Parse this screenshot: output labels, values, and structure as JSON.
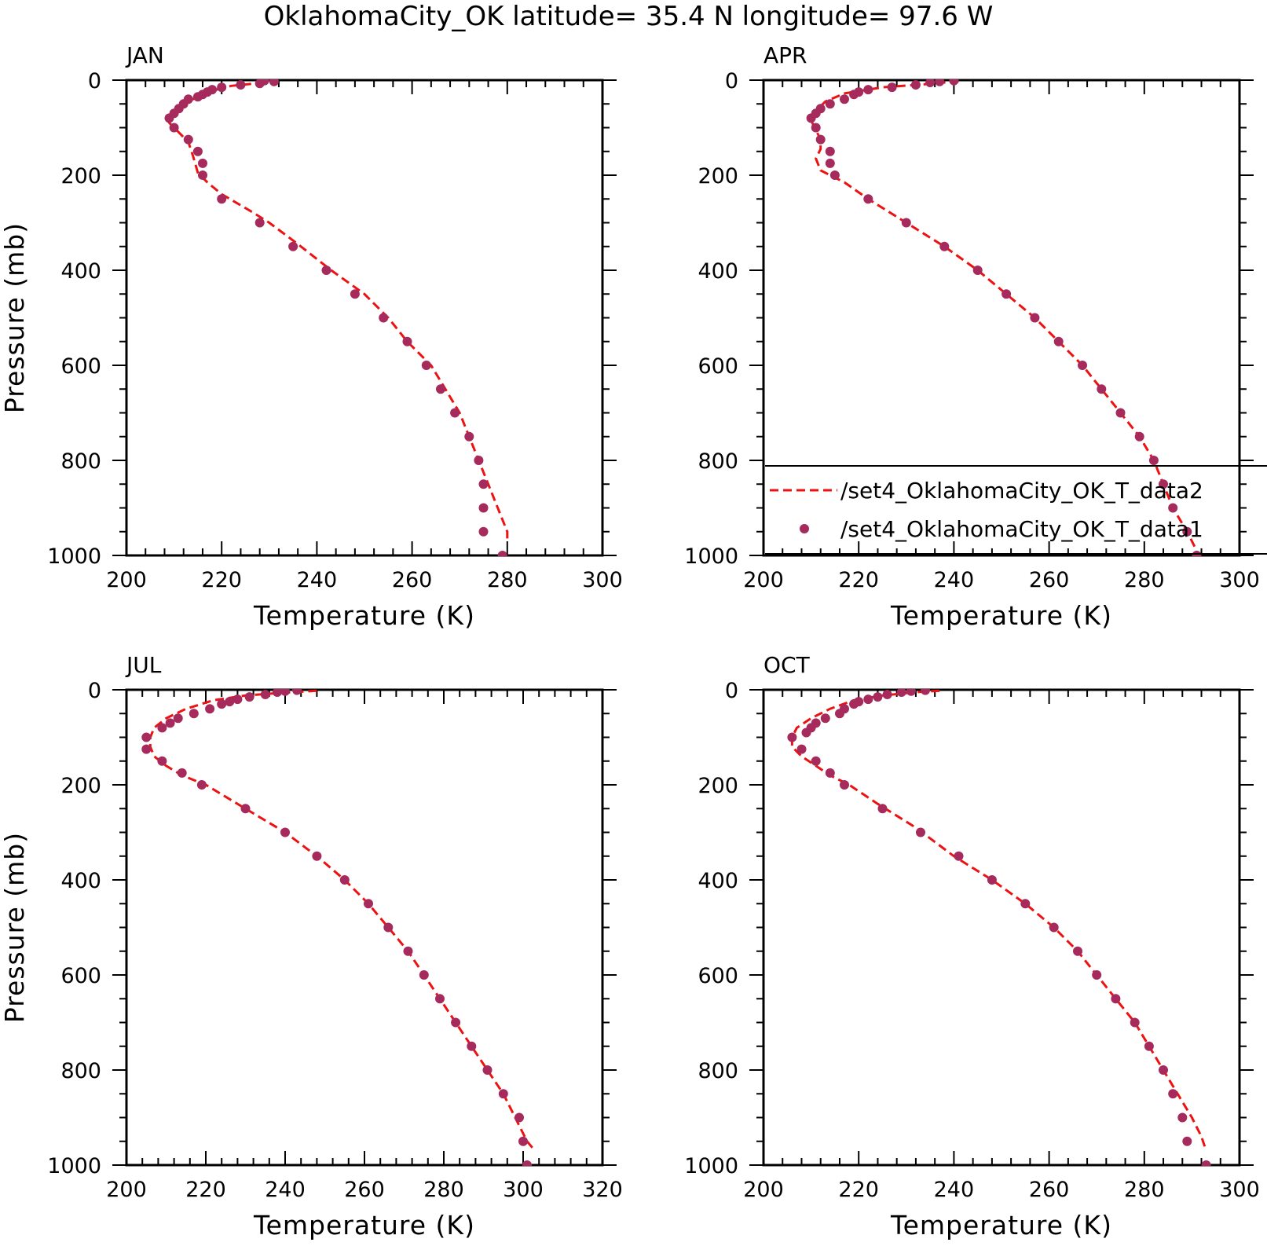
{
  "title": "OklahomaCity_OK   latitude= 35.4 N longitude= 97.6 W",
  "colors": {
    "model_line": "#ee1111",
    "obs_marker": "#a62a5c",
    "axis": "#000000"
  },
  "legend": {
    "panel": 1,
    "entries": [
      {
        "label": "/set4_OklahomaCity_OK_T_data2",
        "style": "dashed-line"
      },
      {
        "label": "/set4_OklahomaCity_OK_T_data1",
        "style": "marker"
      }
    ]
  },
  "chart_data": [
    {
      "type": "line",
      "panel_label": "JAN",
      "xlabel": "Temperature (K)",
      "ylabel": "Pressure (mb)",
      "xlim": [
        200,
        300
      ],
      "ylim": [
        1000,
        0
      ],
      "xticks": [
        200,
        220,
        240,
        260,
        280,
        300
      ],
      "yticks": [
        0,
        200,
        400,
        600,
        800,
        1000
      ],
      "series": [
        {
          "style": "dashed-line",
          "points": [
            [
              229,
              5
            ],
            [
              222,
              12
            ],
            [
              217,
              25
            ],
            [
              213,
              45
            ],
            [
              210,
              65
            ],
            [
              209,
              90
            ],
            [
              211,
              110
            ],
            [
              213,
              130
            ],
            [
              214,
              160
            ],
            [
              215,
              195
            ],
            [
              217,
              215
            ],
            [
              220,
              240
            ],
            [
              226,
              275
            ],
            [
              230,
              300
            ],
            [
              236,
              345
            ],
            [
              243,
              400
            ],
            [
              250,
              450
            ],
            [
              255,
              500
            ],
            [
              259,
              550
            ],
            [
              264,
              600
            ],
            [
              267,
              650
            ],
            [
              270,
              700
            ],
            [
              272,
              750
            ],
            [
              274,
              800
            ],
            [
              276,
              850
            ],
            [
              278,
              900
            ],
            [
              280,
              950
            ],
            [
              280,
              970
            ]
          ]
        },
        {
          "style": "marker",
          "points": [
            [
              229,
              1
            ],
            [
              231,
              3
            ],
            [
              228,
              7
            ],
            [
              224,
              10
            ],
            [
              220,
              15
            ],
            [
              218,
              20
            ],
            [
              217,
              25
            ],
            [
              216,
              30
            ],
            [
              215,
              35
            ],
            [
              213,
              40
            ],
            [
              212,
              50
            ],
            [
              211,
              60
            ],
            [
              210,
              70
            ],
            [
              209,
              80
            ],
            [
              210,
              100
            ],
            [
              213,
              125
            ],
            [
              215,
              150
            ],
            [
              216,
              175
            ],
            [
              216,
              200
            ],
            [
              220,
              250
            ],
            [
              228,
              300
            ],
            [
              235,
              350
            ],
            [
              242,
              400
            ],
            [
              248,
              450
            ],
            [
              254,
              500
            ],
            [
              259,
              550
            ],
            [
              263,
              600
            ],
            [
              266,
              650
            ],
            [
              269,
              700
            ],
            [
              272,
              750
            ],
            [
              274,
              800
            ],
            [
              275,
              850
            ],
            [
              275,
              900
            ],
            [
              275,
              950
            ],
            [
              279,
              1000
            ]
          ]
        }
      ]
    },
    {
      "type": "line",
      "panel_label": "APR",
      "xlabel": "Temperature (K)",
      "ylabel": "",
      "xlim": [
        200,
        300
      ],
      "ylim": [
        1000,
        0
      ],
      "xticks": [
        200,
        220,
        240,
        260,
        280,
        300
      ],
      "yticks": [
        0,
        200,
        400,
        600,
        800,
        1000
      ],
      "series": [
        {
          "style": "dashed-line",
          "points": [
            [
              241,
              2
            ],
            [
              235,
              8
            ],
            [
              225,
              15
            ],
            [
              217,
              28
            ],
            [
              213,
              45
            ],
            [
              211,
              65
            ],
            [
              210,
              85
            ],
            [
              211,
              105
            ],
            [
              212,
              125
            ],
            [
              212,
              145
            ],
            [
              211,
              165
            ],
            [
              212,
              190
            ],
            [
              217,
              215
            ],
            [
              222,
              250
            ],
            [
              230,
              300
            ],
            [
              238,
              350
            ],
            [
              245,
              400
            ],
            [
              251,
              450
            ],
            [
              257,
              500
            ],
            [
              262,
              550
            ],
            [
              267,
              600
            ],
            [
              271,
              650
            ],
            [
              275,
              700
            ],
            [
              279,
              750
            ],
            [
              282,
              800
            ],
            [
              284,
              850
            ],
            [
              286,
              900
            ],
            [
              289,
              950
            ],
            [
              291,
              990
            ]
          ]
        },
        {
          "style": "marker",
          "points": [
            [
              240,
              1
            ],
            [
              237,
              3
            ],
            [
              235,
              5
            ],
            [
              232,
              10
            ],
            [
              227,
              15
            ],
            [
              222,
              20
            ],
            [
              220,
              25
            ],
            [
              219,
              30
            ],
            [
              217,
              40
            ],
            [
              214,
              50
            ],
            [
              212,
              60
            ],
            [
              211,
              70
            ],
            [
              210,
              80
            ],
            [
              211,
              100
            ],
            [
              212,
              125
            ],
            [
              214,
              150
            ],
            [
              214,
              175
            ],
            [
              215,
              200
            ],
            [
              222,
              250
            ],
            [
              230,
              300
            ],
            [
              238,
              350
            ],
            [
              245,
              400
            ],
            [
              251,
              450
            ],
            [
              257,
              500
            ],
            [
              262,
              550
            ],
            [
              267,
              600
            ],
            [
              271,
              650
            ],
            [
              275,
              700
            ],
            [
              279,
              750
            ],
            [
              282,
              800
            ],
            [
              284,
              850
            ],
            [
              286,
              900
            ],
            [
              289,
              950
            ],
            [
              291,
              1000
            ]
          ]
        }
      ]
    },
    {
      "type": "line",
      "panel_label": "JUL",
      "xlabel": "Temperature (K)",
      "ylabel": "Pressure (mb)",
      "xlim": [
        200,
        320
      ],
      "ylim": [
        1000,
        0
      ],
      "xticks": [
        200,
        220,
        240,
        260,
        280,
        300,
        320
      ],
      "yticks": [
        0,
        200,
        400,
        600,
        800,
        1000
      ],
      "series": [
        {
          "style": "dashed-line",
          "points": [
            [
              248,
              2
            ],
            [
              240,
              6
            ],
            [
              230,
              12
            ],
            [
              222,
              22
            ],
            [
              215,
              40
            ],
            [
              210,
              60
            ],
            [
              207,
              80
            ],
            [
              206,
              100
            ],
            [
              206,
              120
            ],
            [
              207,
              140
            ],
            [
              210,
              160
            ],
            [
              214,
              180
            ],
            [
              220,
              200
            ],
            [
              230,
              250
            ],
            [
              240,
              300
            ],
            [
              248,
              350
            ],
            [
              255,
              400
            ],
            [
              261,
              450
            ],
            [
              266,
              500
            ],
            [
              271,
              550
            ],
            [
              275,
              600
            ],
            [
              279,
              650
            ],
            [
              283,
              700
            ],
            [
              287,
              750
            ],
            [
              291,
              800
            ],
            [
              295,
              850
            ],
            [
              298,
              900
            ],
            [
              301,
              950
            ],
            [
              303,
              970
            ]
          ]
        },
        {
          "style": "marker",
          "points": [
            [
              243,
              1
            ],
            [
              240,
              3
            ],
            [
              238,
              5
            ],
            [
              235,
              10
            ],
            [
              231,
              15
            ],
            [
              228,
              20
            ],
            [
              226,
              25
            ],
            [
              224,
              30
            ],
            [
              221,
              40
            ],
            [
              217,
              50
            ],
            [
              213,
              60
            ],
            [
              211,
              70
            ],
            [
              209,
              80
            ],
            [
              205,
              100
            ],
            [
              205,
              125
            ],
            [
              209,
              150
            ],
            [
              214,
              175
            ],
            [
              219,
              200
            ],
            [
              230,
              250
            ],
            [
              240,
              300
            ],
            [
              248,
              350
            ],
            [
              255,
              400
            ],
            [
              261,
              450
            ],
            [
              266,
              500
            ],
            [
              271,
              550
            ],
            [
              275,
              600
            ],
            [
              279,
              650
            ],
            [
              283,
              700
            ],
            [
              287,
              750
            ],
            [
              291,
              800
            ],
            [
              295,
              850
            ],
            [
              299,
              900
            ],
            [
              300,
              950
            ],
            [
              301,
              1000
            ]
          ]
        }
      ]
    },
    {
      "type": "line",
      "panel_label": "OCT",
      "xlabel": "Temperature (K)",
      "ylabel": "",
      "xlim": [
        200,
        300
      ],
      "ylim": [
        1000,
        0
      ],
      "xticks": [
        200,
        220,
        240,
        260,
        280,
        300
      ],
      "yticks": [
        0,
        200,
        400,
        600,
        800,
        1000
      ],
      "series": [
        {
          "style": "dashed-line",
          "points": [
            [
              237,
              2
            ],
            [
              232,
              5
            ],
            [
              225,
              12
            ],
            [
              219,
              22
            ],
            [
              214,
              40
            ],
            [
              210,
              60
            ],
            [
              207,
              80
            ],
            [
              206,
              100
            ],
            [
              206,
              120
            ],
            [
              208,
              140
            ],
            [
              211,
              160
            ],
            [
              214,
              180
            ],
            [
              218,
              200
            ],
            [
              224,
              240
            ],
            [
              232,
              290
            ],
            [
              240,
              350
            ],
            [
              248,
              400
            ],
            [
              255,
              450
            ],
            [
              261,
              500
            ],
            [
              266,
              550
            ],
            [
              270,
              600
            ],
            [
              274,
              650
            ],
            [
              278,
              700
            ],
            [
              281,
              750
            ],
            [
              284,
              800
            ],
            [
              287,
              850
            ],
            [
              290,
              900
            ],
            [
              292,
              940
            ],
            [
              293,
              970
            ]
          ]
        },
        {
          "style": "marker",
          "points": [
            [
              234,
              1
            ],
            [
              231,
              3
            ],
            [
              229,
              5
            ],
            [
              226,
              10
            ],
            [
              224,
              15
            ],
            [
              222,
              20
            ],
            [
              220,
              25
            ],
            [
              219,
              30
            ],
            [
              217,
              40
            ],
            [
              216,
              50
            ],
            [
              213,
              60
            ],
            [
              211,
              70
            ],
            [
              210,
              80
            ],
            [
              209,
              90
            ],
            [
              206,
              100
            ],
            [
              208,
              125
            ],
            [
              211,
              150
            ],
            [
              214,
              175
            ],
            [
              217,
              200
            ],
            [
              225,
              250
            ],
            [
              233,
              300
            ],
            [
              241,
              350
            ],
            [
              248,
              400
            ],
            [
              255,
              450
            ],
            [
              261,
              500
            ],
            [
              266,
              550
            ],
            [
              270,
              600
            ],
            [
              274,
              650
            ],
            [
              278,
              700
            ],
            [
              281,
              750
            ],
            [
              284,
              800
            ],
            [
              286,
              850
            ],
            [
              288,
              900
            ],
            [
              289,
              950
            ],
            [
              293,
              1000
            ]
          ]
        }
      ]
    }
  ]
}
